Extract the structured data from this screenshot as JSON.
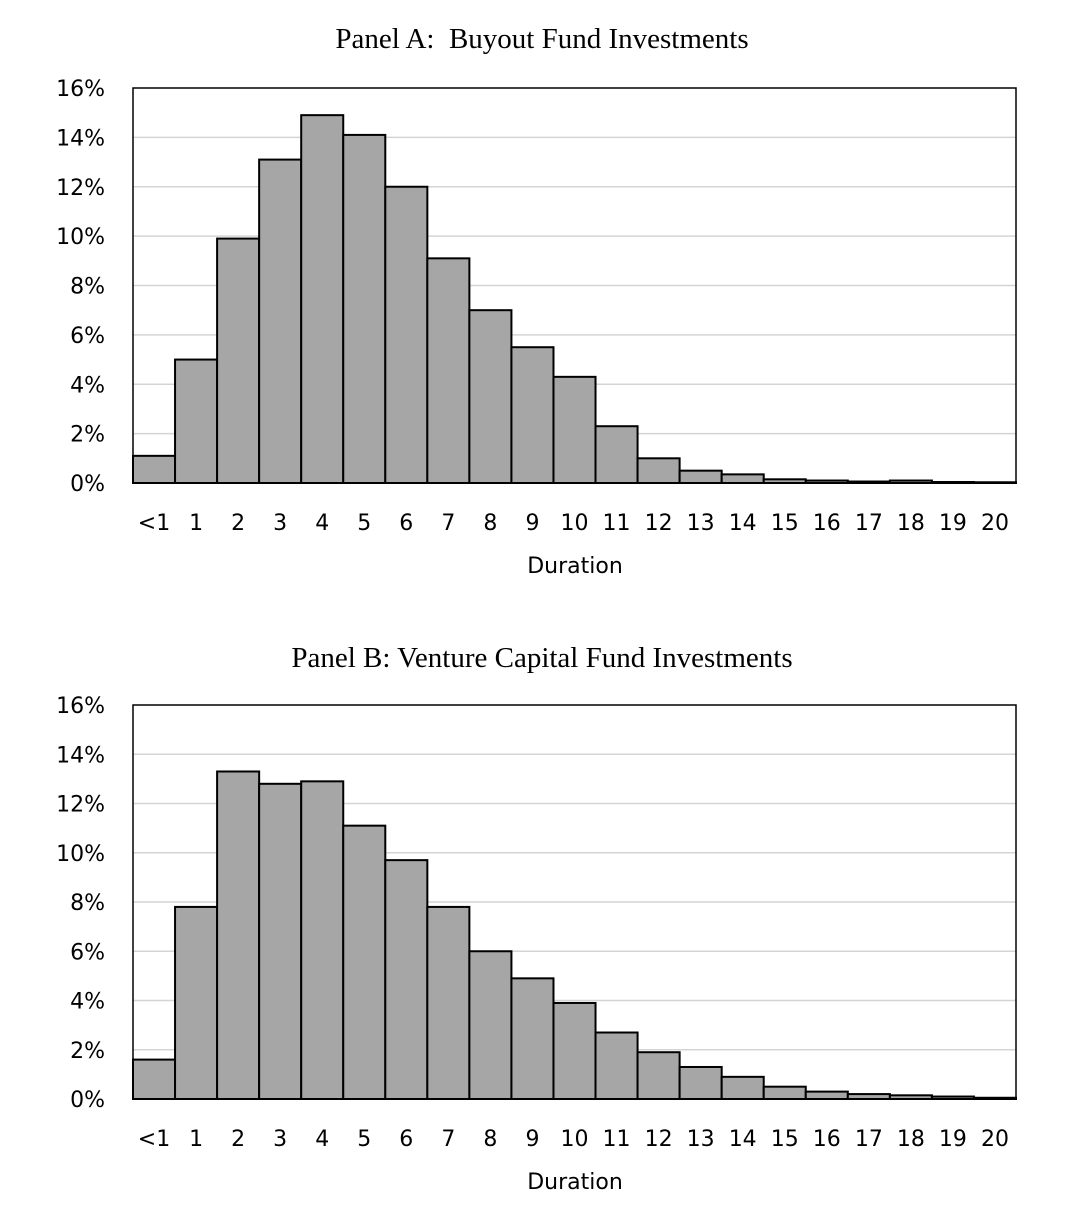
{
  "chart_data": [
    {
      "type": "bar",
      "title": "Panel A:  Buyout Fund Investments",
      "xlabel": "Duration",
      "ylabel": "",
      "ylim": [
        0,
        0.16
      ],
      "yticks": [
        "0%",
        "2%",
        "4%",
        "6%",
        "8%",
        "10%",
        "12%",
        "14%",
        "16%"
      ],
      "grid": true,
      "legend": "none",
      "bar_color": "#a6a6a6",
      "categories": [
        "<1",
        "1",
        "2",
        "3",
        "4",
        "5",
        "6",
        "7",
        "8",
        "9",
        "10",
        "11",
        "12",
        "13",
        "14",
        "15",
        "16",
        "17",
        "18",
        "19",
        "20"
      ],
      "values": [
        0.011,
        0.05,
        0.099,
        0.131,
        0.149,
        0.141,
        0.12,
        0.091,
        0.07,
        0.055,
        0.043,
        0.023,
        0.01,
        0.005,
        0.0035,
        0.0015,
        0.001,
        0.0006,
        0.001,
        0.0004,
        0.0003
      ]
    },
    {
      "type": "bar",
      "title": "Panel B: Venture Capital Fund Investments",
      "xlabel": "Duration",
      "ylabel": "",
      "ylim": [
        0,
        0.16
      ],
      "yticks": [
        "0%",
        "2%",
        "4%",
        "6%",
        "8%",
        "10%",
        "12%",
        "14%",
        "16%"
      ],
      "grid": true,
      "legend": "none",
      "bar_color": "#a6a6a6",
      "categories": [
        "<1",
        "1",
        "2",
        "3",
        "4",
        "5",
        "6",
        "7",
        "8",
        "9",
        "10",
        "11",
        "12",
        "13",
        "14",
        "15",
        "16",
        "17",
        "18",
        "19",
        "20"
      ],
      "values": [
        0.016,
        0.078,
        0.133,
        0.128,
        0.129,
        0.111,
        0.097,
        0.078,
        0.06,
        0.049,
        0.039,
        0.027,
        0.019,
        0.013,
        0.009,
        0.005,
        0.003,
        0.002,
        0.0015,
        0.001,
        0.0005
      ]
    }
  ]
}
